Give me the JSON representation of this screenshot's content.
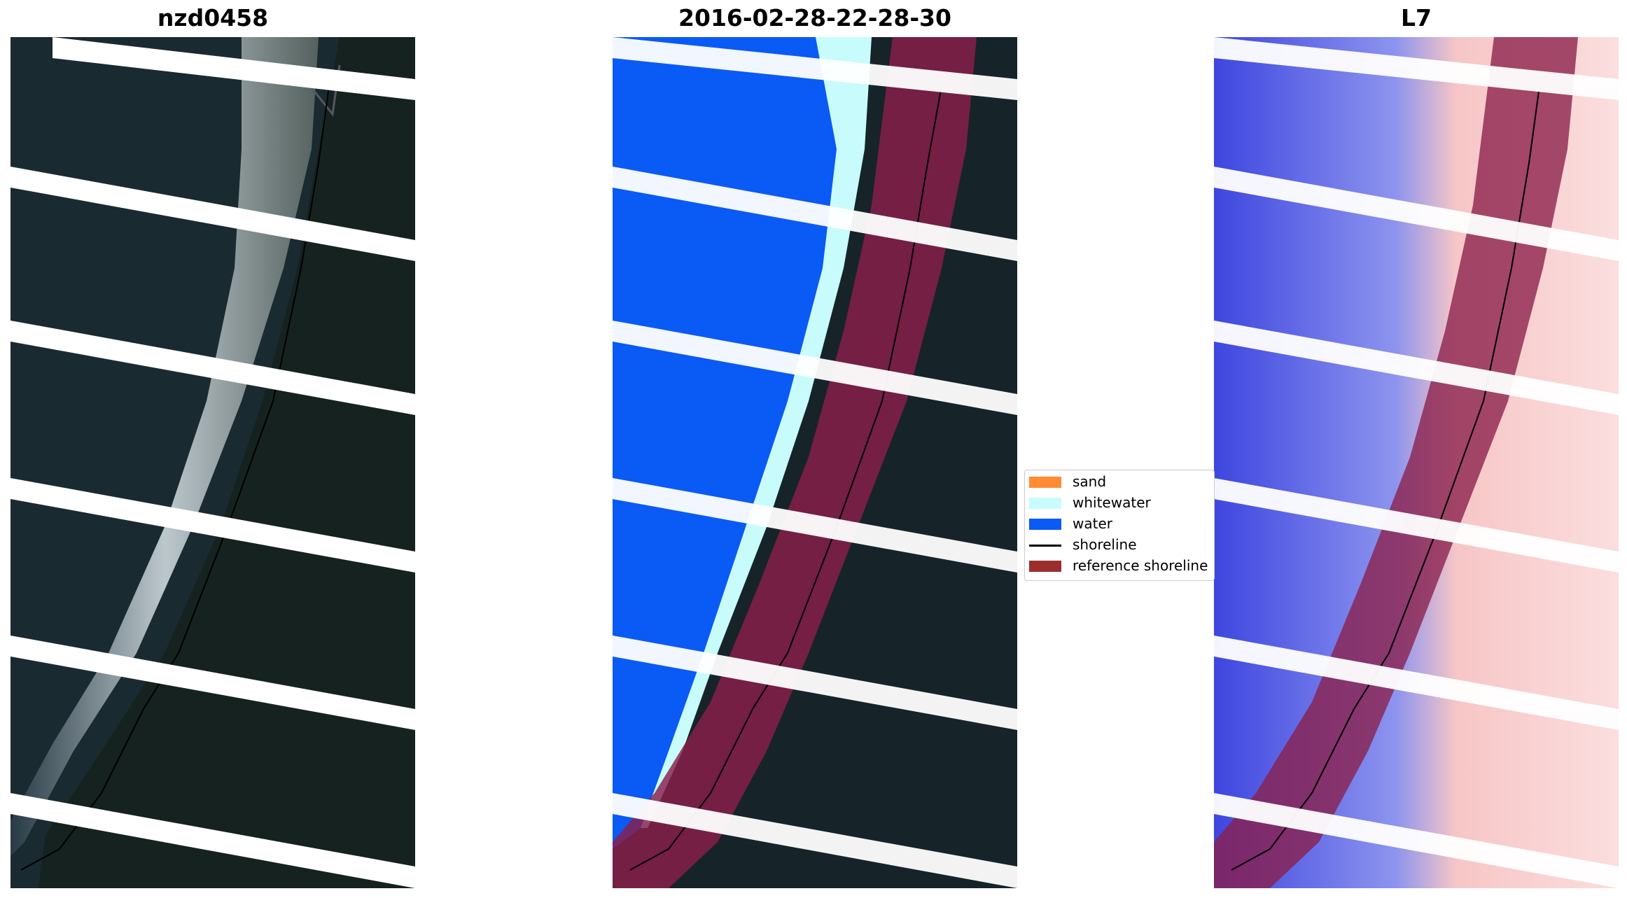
{
  "panels": [
    {
      "title": "nzd0458",
      "kind": "rgb"
    },
    {
      "title": "2016-02-28-22-28-30",
      "kind": "classified"
    },
    {
      "title": "L7",
      "kind": "index"
    }
  ],
  "legend": {
    "items": [
      {
        "label": "sand",
        "color": "#ff8c33",
        "type": "patch"
      },
      {
        "label": "whitewater",
        "color": "#c8fcfc",
        "type": "patch"
      },
      {
        "label": "water",
        "color": "#0a5af5",
        "type": "patch"
      },
      {
        "label": "shoreline",
        "color": "#000000",
        "type": "line"
      },
      {
        "label": "reference shoreline",
        "color": "#9b2d2d",
        "type": "patch"
      }
    ]
  },
  "colors": {
    "land_dark": "#16242a",
    "ocean_dark": "#1b2b33",
    "water": "#0a5af5",
    "whitewater": "#c8fcfc",
    "index_water": "#3e46e0",
    "index_land": "#f7c6c6",
    "reference_band": "#8a1f4a",
    "scanline_gap": "#ffffff"
  }
}
